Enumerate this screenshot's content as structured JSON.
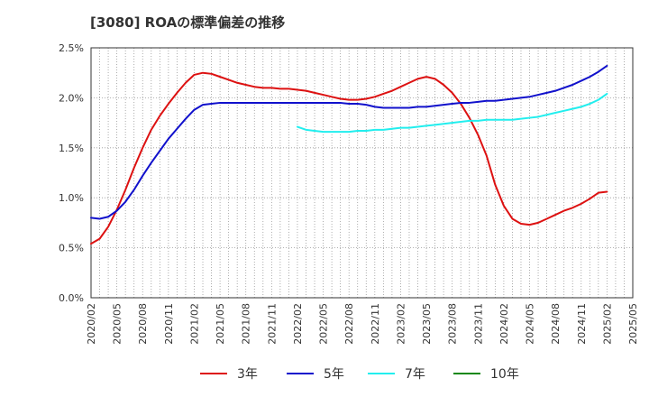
{
  "chart_data": {
    "type": "line",
    "title": "[3080]  ROAの標準偏差の推移",
    "xlabel": "",
    "ylabel": "",
    "ylim": [
      0,
      2.5
    ],
    "y_ticks": [
      "0.0%",
      "0.5%",
      "1.0%",
      "1.5%",
      "2.0%",
      "2.5%"
    ],
    "x_ticks": [
      "2020/02",
      "2020/05",
      "2020/08",
      "2020/11",
      "2021/02",
      "2021/05",
      "2021/08",
      "2021/11",
      "2022/02",
      "2022/05",
      "2022/08",
      "2022/11",
      "2023/02",
      "2023/05",
      "2023/08",
      "2023/11",
      "2024/02",
      "2024/05",
      "2024/08",
      "2024/11",
      "2025/02",
      "2025/05"
    ],
    "grid": true,
    "legend_position": "bottom",
    "series": [
      {
        "name": "3年",
        "color": "#dd1111",
        "x": [
          "2020/02",
          "2020/03",
          "2020/04",
          "2020/05",
          "2020/06",
          "2020/07",
          "2020/08",
          "2020/09",
          "2020/10",
          "2020/11",
          "2020/12",
          "2021/01",
          "2021/02",
          "2021/03",
          "2021/04",
          "2021/05",
          "2021/06",
          "2021/07",
          "2021/08",
          "2021/09",
          "2021/10",
          "2021/11",
          "2021/12",
          "2022/01",
          "2022/02",
          "2022/03",
          "2022/04",
          "2022/05",
          "2022/06",
          "2022/07",
          "2022/08",
          "2022/09",
          "2022/10",
          "2022/11",
          "2022/12",
          "2023/01",
          "2023/02",
          "2023/03",
          "2023/04",
          "2023/05",
          "2023/06",
          "2023/07",
          "2023/08",
          "2023/09",
          "2023/10",
          "2023/11",
          "2023/12",
          "2024/01",
          "2024/02",
          "2024/03",
          "2024/04",
          "2024/05",
          "2024/06",
          "2024/07",
          "2024/08",
          "2024/09",
          "2024/10",
          "2024/11",
          "2024/12",
          "2025/01",
          "2025/02"
        ],
        "values": [
          0.54,
          0.59,
          0.71,
          0.88,
          1.08,
          1.3,
          1.5,
          1.68,
          1.82,
          1.94,
          2.05,
          2.15,
          2.23,
          2.25,
          2.24,
          2.21,
          2.18,
          2.15,
          2.13,
          2.11,
          2.1,
          2.1,
          2.09,
          2.09,
          2.08,
          2.07,
          2.05,
          2.03,
          2.01,
          1.99,
          1.98,
          1.98,
          1.99,
          2.01,
          2.04,
          2.07,
          2.11,
          2.15,
          2.19,
          2.21,
          2.19,
          2.13,
          2.05,
          1.94,
          1.8,
          1.63,
          1.42,
          1.13,
          0.92,
          0.79,
          0.74,
          0.73,
          0.75,
          0.79,
          0.83,
          0.87,
          0.9,
          0.94,
          0.99,
          1.05,
          1.06
        ]
      },
      {
        "name": "5年",
        "color": "#1111cc",
        "x": [
          "2020/02",
          "2020/03",
          "2020/04",
          "2020/05",
          "2020/06",
          "2020/07",
          "2020/08",
          "2020/09",
          "2020/10",
          "2020/11",
          "2020/12",
          "2021/01",
          "2021/02",
          "2021/03",
          "2021/04",
          "2021/05",
          "2021/06",
          "2021/07",
          "2021/08",
          "2021/09",
          "2021/10",
          "2021/11",
          "2021/12",
          "2022/01",
          "2022/02",
          "2022/03",
          "2022/04",
          "2022/05",
          "2022/06",
          "2022/07",
          "2022/08",
          "2022/09",
          "2022/10",
          "2022/11",
          "2022/12",
          "2023/01",
          "2023/02",
          "2023/03",
          "2023/04",
          "2023/05",
          "2023/06",
          "2023/07",
          "2023/08",
          "2023/09",
          "2023/10",
          "2023/11",
          "2023/12",
          "2024/01",
          "2024/02",
          "2024/03",
          "2024/04",
          "2024/05",
          "2024/06",
          "2024/07",
          "2024/08",
          "2024/09",
          "2024/10",
          "2024/11",
          "2024/12",
          "2025/01",
          "2025/02"
        ],
        "values": [
          0.8,
          0.79,
          0.81,
          0.87,
          0.96,
          1.08,
          1.22,
          1.35,
          1.47,
          1.59,
          1.69,
          1.79,
          1.88,
          1.93,
          1.94,
          1.95,
          1.95,
          1.95,
          1.95,
          1.95,
          1.95,
          1.95,
          1.95,
          1.95,
          1.95,
          1.95,
          1.95,
          1.95,
          1.95,
          1.95,
          1.94,
          1.94,
          1.93,
          1.91,
          1.9,
          1.9,
          1.9,
          1.9,
          1.91,
          1.91,
          1.92,
          1.93,
          1.94,
          1.95,
          1.95,
          1.96,
          1.97,
          1.97,
          1.98,
          1.99,
          2.0,
          2.01,
          2.03,
          2.05,
          2.07,
          2.1,
          2.13,
          2.17,
          2.21,
          2.26,
          2.32
        ]
      },
      {
        "name": "7年",
        "color": "#22eeee",
        "x": [
          "2022/02",
          "2022/03",
          "2022/04",
          "2022/05",
          "2022/06",
          "2022/07",
          "2022/08",
          "2022/09",
          "2022/10",
          "2022/11",
          "2022/12",
          "2023/01",
          "2023/02",
          "2023/03",
          "2023/04",
          "2023/05",
          "2023/06",
          "2023/07",
          "2023/08",
          "2023/09",
          "2023/10",
          "2023/11",
          "2023/12",
          "2024/01",
          "2024/02",
          "2024/03",
          "2024/04",
          "2024/05",
          "2024/06",
          "2024/07",
          "2024/08",
          "2024/09",
          "2024/10",
          "2024/11",
          "2024/12",
          "2025/01",
          "2025/02"
        ],
        "values": [
          1.71,
          1.68,
          1.67,
          1.66,
          1.66,
          1.66,
          1.66,
          1.67,
          1.67,
          1.68,
          1.68,
          1.69,
          1.7,
          1.7,
          1.71,
          1.72,
          1.73,
          1.74,
          1.75,
          1.76,
          1.77,
          1.77,
          1.78,
          1.78,
          1.78,
          1.78,
          1.79,
          1.8,
          1.81,
          1.83,
          1.85,
          1.87,
          1.89,
          1.91,
          1.94,
          1.98,
          2.04
        ]
      },
      {
        "name": "10年",
        "color": "#118811",
        "x": [],
        "values": []
      }
    ]
  }
}
